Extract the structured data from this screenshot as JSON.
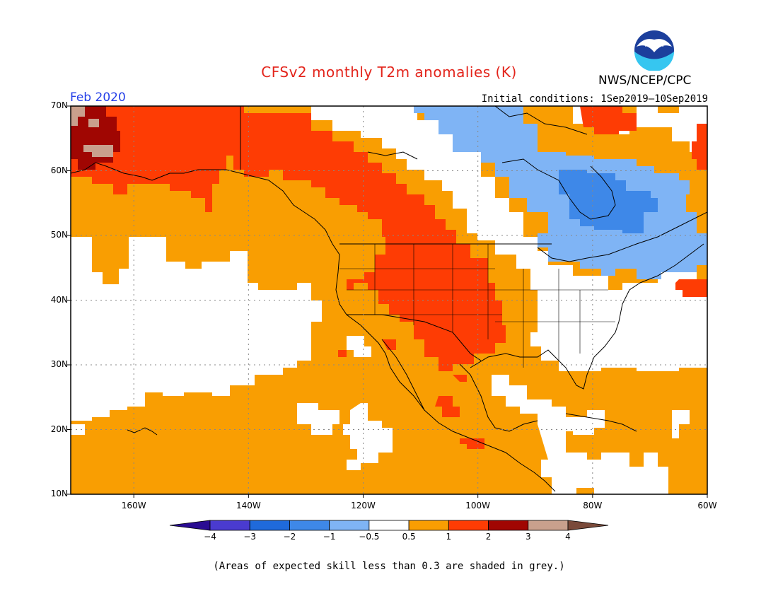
{
  "title": "CFSv2 monthly T2m anomalies (K)",
  "agency": "NWS/NCEP/CPC",
  "logo_text": "NOAA",
  "period": "Feb 2020",
  "initial_conditions": "Initial conditions: 1Sep2019—10Sep2019",
  "footnote": "(Areas of expected skill less than 0.3 are shaded in grey.)",
  "map": {
    "lon_range": [
      -171,
      -60
    ],
    "lat_range": [
      10,
      70
    ],
    "lat_ticks": [
      {
        "value": 70,
        "label": "70N"
      },
      {
        "value": 60,
        "label": "60N"
      },
      {
        "value": 50,
        "label": "50N"
      },
      {
        "value": 40,
        "label": "40N"
      },
      {
        "value": 30,
        "label": "30N"
      },
      {
        "value": 20,
        "label": "20N"
      },
      {
        "value": 10,
        "label": "10N"
      }
    ],
    "lon_ticks": [
      {
        "value": -160,
        "label": "160W"
      },
      {
        "value": -140,
        "label": "140W"
      },
      {
        "value": -120,
        "label": "120W"
      },
      {
        "value": -100,
        "label": "100W"
      },
      {
        "value": -80,
        "label": "80W"
      },
      {
        "value": -60,
        "label": "60W"
      }
    ],
    "gridlines": "dotted",
    "regions": [
      {
        "category": "0.5 to 1",
        "color": "#f99e02",
        "description": "broad warm anomaly over the Pacific, western and central North America, Mexico, Gulf and Caribbean"
      },
      {
        "category": "1 to 2",
        "color": "#fe3c04",
        "description": "Alaska, western Canada, northern and central Rockies and Plains, northern Mexico"
      },
      {
        "category": "2 to 3",
        "color": "#a00602",
        "description": "western Alaska / Bering Strait"
      },
      {
        "category": "3 to 4",
        "color": "#c9a08d",
        "description": "small patches near Bering Strait"
      },
      {
        "category": "-0.5 to -1",
        "color": "#7fb4f5",
        "description": "northern Quebec, Ontario, Great Lakes"
      },
      {
        "category": "-1 to -2",
        "color": "#3e88e8",
        "description": "Hudson Bay / Quebec core"
      }
    ]
  },
  "colorbar": {
    "colors": [
      "#2a0c92",
      "#4a3bd0",
      "#1f6adb",
      "#3e88e8",
      "#7fb4f5",
      "#ffffff",
      "#f99e02",
      "#fe3c04",
      "#a00602",
      "#c9a08d",
      "#7a4a3a"
    ],
    "labels": [
      "−4",
      "−3",
      "−2",
      "−1",
      "−0.5",
      "0.5",
      "1",
      "2",
      "3",
      "4"
    ]
  }
}
